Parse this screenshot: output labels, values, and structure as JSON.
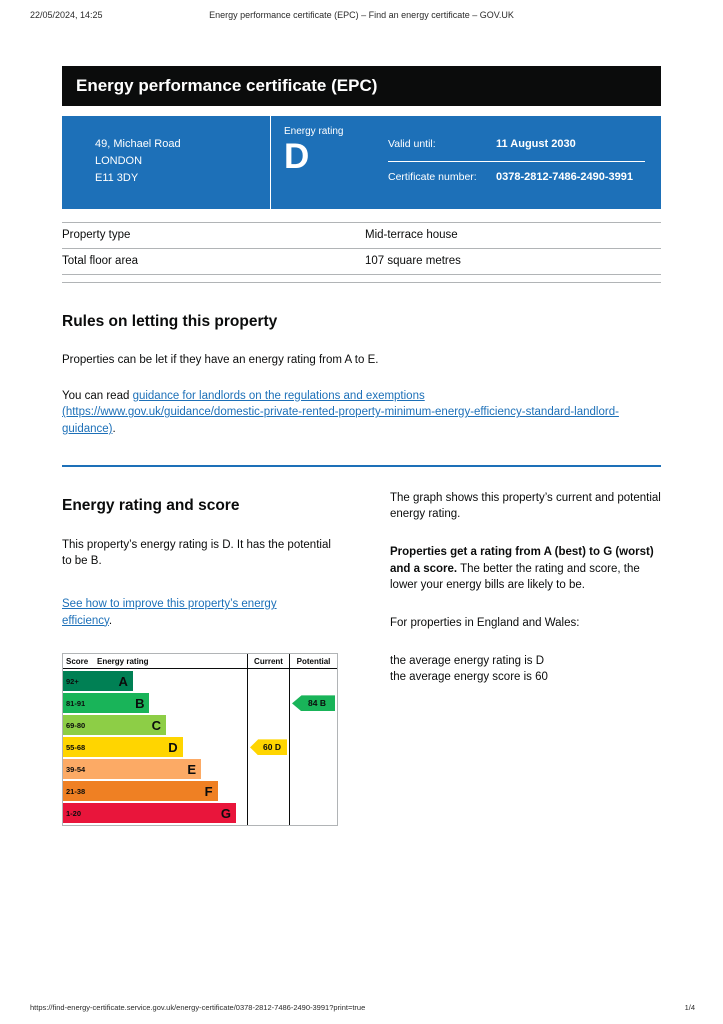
{
  "print_header": {
    "datetime": "22/05/2024, 14:25",
    "title": "Energy performance certificate (EPC) – Find an energy certificate – GOV.UK"
  },
  "print_footer": {
    "url": "https://find-energy-certificate.service.gov.uk/energy-certificate/0378-2812-7486-2490-3991?print=true",
    "page": "1/4"
  },
  "banner": {
    "title": "Energy performance certificate (EPC)"
  },
  "colors": {
    "govuk_blue": "#1d70b8",
    "govuk_black": "#0b0c0c"
  },
  "summary": {
    "address_lines": [
      "49, Michael Road",
      "LONDON",
      "E11 3DY"
    ],
    "energy_rating_label": "Energy rating",
    "energy_rating": "D",
    "valid_until_label": "Valid until:",
    "valid_until": "11 August 2030",
    "certificate_number_label": "Certificate number:",
    "certificate_number": "0378-2812-7486-2490-3991"
  },
  "property_table": {
    "rows": [
      {
        "label": "Property type",
        "value": "Mid-terrace house"
      },
      {
        "label": "Total floor area",
        "value": "107 square metres"
      }
    ]
  },
  "rules": {
    "heading": "Rules on letting this property",
    "para1": "Properties can be let if they have an energy rating from A to E.",
    "para2_prefix": "You can read ",
    "link_text": "guidance for landlords on the regulations and exemptions (https://www.gov.uk/guidance/domestic-private-rented-property-minimum-energy-efficiency-standard-landlord-guidance)",
    "para2_suffix": "."
  },
  "rating_section": {
    "heading": "Energy rating and score",
    "intro": "This property’s energy rating is D. It has the potential to be B.",
    "improve_link": "See how to improve this property’s energy efficiency",
    "improve_suffix": ".",
    "graph_text": "The graph shows this property’s current and potential energy rating.",
    "explain_bold": "Properties get a rating from A (best) to G (worst) and a score.",
    "explain_rest": " The better the rating and score, the lower your energy bills are likely to be.",
    "england_wales": "For properties in England and Wales:",
    "avg_rating": "the average energy rating is D",
    "avg_score": "the average energy score is 60"
  },
  "chart_data": {
    "type": "bar",
    "title": "Energy rating and score chart",
    "columns": [
      "Score",
      "Energy rating",
      "Current",
      "Potential"
    ],
    "bands": [
      {
        "score": "92+",
        "letter": "A",
        "color": "#008054",
        "width_pct": 38
      },
      {
        "score": "81-91",
        "letter": "B",
        "color": "#19b459",
        "width_pct": 47
      },
      {
        "score": "69-80",
        "letter": "C",
        "color": "#8dce46",
        "width_pct": 56
      },
      {
        "score": "55-68",
        "letter": "D",
        "color": "#ffd500",
        "width_pct": 65
      },
      {
        "score": "39-54",
        "letter": "E",
        "color": "#fcaa65",
        "width_pct": 75
      },
      {
        "score": "21-38",
        "letter": "F",
        "color": "#ef8023",
        "width_pct": 84
      },
      {
        "score": "1-20",
        "letter": "G",
        "color": "#e9153b",
        "width_pct": 94
      }
    ],
    "current": {
      "label": "60 D",
      "score": 60,
      "band": "D",
      "color": "#ffd500",
      "row": 3
    },
    "potential": {
      "label": "84 B",
      "score": 84,
      "band": "B",
      "color": "#19b459",
      "row": 1
    }
  }
}
